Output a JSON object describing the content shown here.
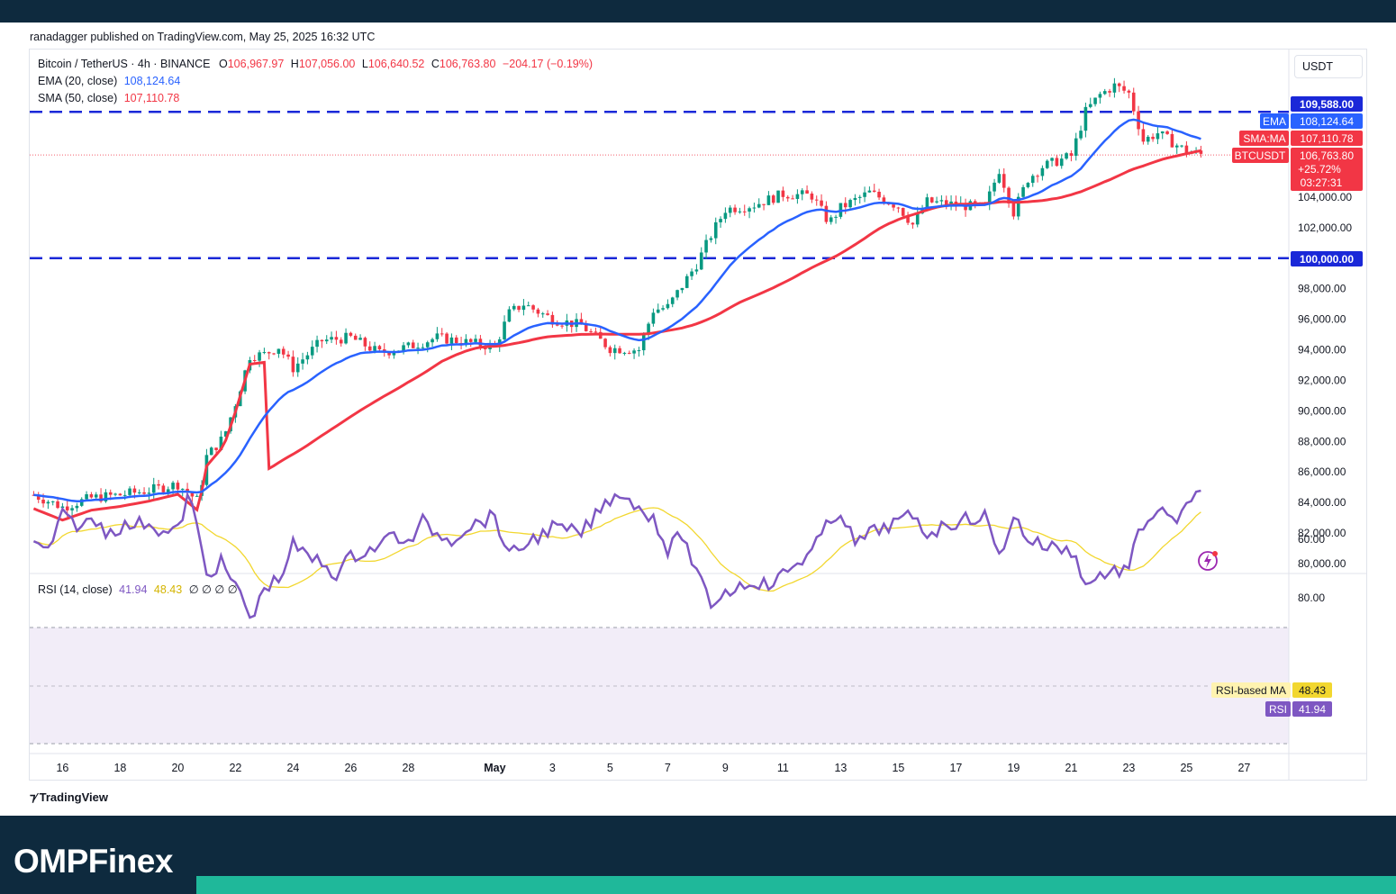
{
  "publisher": "ranadagger published on TradingView.com, May 25, 2025 16:32 UTC",
  "symbol": {
    "title": "Bitcoin / TetherUS · 4h · BINANCE",
    "open_label": "O",
    "open": "106,967.97",
    "high_label": "H",
    "high": "107,056.00",
    "low_label": "L",
    "low": "106,640.52",
    "close_label": "C",
    "close": "106,763.80",
    "change": "−204.17 (−0.19%)"
  },
  "ema": {
    "label": "EMA (20, close)",
    "value": "108,124.64",
    "tag": "EMA",
    "color": "#2962ff"
  },
  "sma": {
    "label": "SMA (50, close)",
    "value": "107,110.78",
    "tag": "SMA:MA",
    "color": "#f23645"
  },
  "currency": "USDT",
  "price_tag": {
    "name": "BTCUSDT",
    "value": "106,763.80",
    "change": "+25.72%",
    "countdown": "03:27:31"
  },
  "resistance_label": "109,588.00",
  "support_label": "100,000.00",
  "rsi": {
    "label": "RSI (14, close)",
    "value": "41.94",
    "ma_value": "48.43",
    "placeholders": "∅ ∅ ∅ ∅",
    "ma_tag": "RSI-based MA",
    "tag": "RSI",
    "line_color": "#7e57c2",
    "ma_color": "#f2d72f"
  },
  "branding": {
    "tradingview": "TradingView",
    "omp": "OMPFinex"
  },
  "chart_data": [
    {
      "type": "candlestick",
      "title": "Bitcoin / TetherUS · 4h · BINANCE",
      "ylim": [
        79500,
        112000
      ],
      "y_ticks": [
        80000,
        82000,
        84000,
        86000,
        88000,
        90000,
        92000,
        94000,
        96000,
        98000,
        102000,
        104000
      ],
      "y_tick_labels": [
        "80,000.00",
        "82,000.00",
        "84,000.00",
        "86,000.00",
        "88,000.00",
        "90,000.00",
        "92,000.00",
        "94,000.00",
        "96,000.00",
        "98,000.00",
        "102,000.00",
        "104,000.00"
      ],
      "x_ticks": [
        "16",
        "18",
        "20",
        "22",
        "24",
        "26",
        "28",
        "May",
        "3",
        "5",
        "7",
        "9",
        "11",
        "13",
        "15",
        "17",
        "19",
        "21",
        "23",
        "25",
        "27"
      ],
      "horizontal_lines": [
        {
          "value": 109588,
          "style": "dashed",
          "color": "#1a28d8"
        },
        {
          "value": 100000,
          "style": "dashed",
          "color": "#1a28d8"
        }
      ],
      "last_price": 106763.8,
      "price_path": [
        [
          "Apr 15",
          84500
        ],
        [
          "Apr 16",
          83700
        ],
        [
          "Apr 17",
          84300
        ],
        [
          "Apr 18",
          84500
        ],
        [
          "Apr 19",
          84800
        ],
        [
          "Apr 20",
          85200
        ],
        [
          "Apr 20.7",
          84100
        ],
        [
          "Apr 21",
          87000
        ],
        [
          "Apr 21.6",
          88300
        ],
        [
          "Apr 22",
          90500
        ],
        [
          "Apr 22.5",
          93600
        ],
        [
          "Apr 23",
          93700
        ],
        [
          "Apr 23.5",
          94200
        ],
        [
          "Apr 24",
          92800
        ],
        [
          "Apr 25",
          94600
        ],
        [
          "Apr 26",
          94800
        ],
        [
          "Apr 27",
          93800
        ],
        [
          "Apr 28",
          94200
        ],
        [
          "Apr 29",
          94800
        ],
        [
          "Apr 30",
          94500
        ],
        [
          "May 1",
          94200
        ],
        [
          "May 1.5",
          96400
        ],
        [
          "May 2",
          97000
        ],
        [
          "May 3",
          96000
        ],
        [
          "May 4",
          95600
        ],
        [
          "May 5",
          94100
        ],
        [
          "May 6",
          94000
        ],
        [
          "May 6.5",
          96600
        ],
        [
          "May 7",
          96800
        ],
        [
          "May 8",
          99600
        ],
        [
          "May 8.5",
          101500
        ],
        [
          "May 9",
          103200
        ],
        [
          "May 10",
          103500
        ],
        [
          "May 11",
          104200
        ],
        [
          "May 12",
          104100
        ],
        [
          "May 12.6",
          102300
        ],
        [
          "May 13",
          103300
        ],
        [
          "May 14",
          104300
        ],
        [
          "May 15",
          103400
        ],
        [
          "May 15.5",
          102200
        ],
        [
          "May 16",
          103700
        ],
        [
          "May 17",
          103500
        ],
        [
          "May 18",
          103300
        ],
        [
          "May 18.5",
          105800
        ],
        [
          "May 19",
          103000
        ],
        [
          "May 19.5",
          105200
        ],
        [
          "May 20",
          106000
        ],
        [
          "May 21",
          106700
        ],
        [
          "May 21.5",
          109600
        ],
        [
          "May 22",
          110700
        ],
        [
          "May 22.5",
          111300
        ],
        [
          "May 23",
          110800
        ],
        [
          "May 23.5",
          107700
        ],
        [
          "May 24",
          108200
        ],
        [
          "May 24.5",
          107600
        ],
        [
          "May 25",
          107000
        ],
        [
          "May 25.6",
          106763.8
        ]
      ],
      "series": [
        {
          "name": "EMA (20, close)",
          "color": "#2962ff",
          "final": 108124.64
        },
        {
          "name": "SMA (50, close)",
          "color": "#f23645",
          "final": 107110.78
        }
      ]
    },
    {
      "type": "line",
      "title": "RSI (14, close)",
      "ylim": [
        40,
        85
      ],
      "y_ticks": [
        60,
        80
      ],
      "y_tick_labels": [
        "60.00",
        "80.00"
      ],
      "band": [
        30,
        70
      ],
      "x_ticks": [
        "16",
        "18",
        "20",
        "22",
        "24",
        "26",
        "28",
        "May",
        "3",
        "5",
        "7",
        "9",
        "11",
        "13",
        "15",
        "17",
        "19",
        "21",
        "23",
        "25",
        "27"
      ],
      "rsi_path": [
        [
          "Apr 15",
          62
        ],
        [
          "Apr 15.5",
          64
        ],
        [
          "Apr 16",
          52
        ],
        [
          "Apr 16.7",
          56
        ],
        [
          "Apr 17",
          53
        ],
        [
          "Apr 17.5",
          57
        ],
        [
          "Apr 18",
          56
        ],
        [
          "Apr 19",
          54
        ],
        [
          "Apr 19.5",
          58
        ],
        [
          "Apr 20",
          57
        ],
        [
          "Apr 20.4",
          44
        ],
        [
          "Apr 21",
          72
        ],
        [
          "Apr 21.5",
          68
        ],
        [
          "Apr 22",
          76
        ],
        [
          "Apr 22.6",
          88
        ],
        [
          "Apr 23",
          76
        ],
        [
          "Apr 23.5",
          74
        ],
        [
          "Apr 24",
          62
        ],
        [
          "Apr 24.5",
          66
        ],
        [
          "Apr 25",
          68
        ],
        [
          "Apr 25.5",
          72
        ],
        [
          "Apr 26",
          66
        ],
        [
          "Apr 27",
          62
        ],
        [
          "Apr 27.5",
          58
        ],
        [
          "Apr 28",
          62
        ],
        [
          "Apr 28.5",
          54
        ],
        [
          "Apr 29",
          58
        ],
        [
          "Apr 29.5",
          60
        ],
        [
          "Apr 30",
          56
        ],
        [
          "May 1",
          52
        ],
        [
          "May 1.5",
          66
        ],
        [
          "May 2",
          62
        ],
        [
          "May 3",
          56
        ],
        [
          "May 4",
          58
        ],
        [
          "May 5",
          46
        ],
        [
          "May 5.5",
          44
        ],
        [
          "May 6",
          50
        ],
        [
          "May 6.5",
          52
        ],
        [
          "May 7",
          64
        ],
        [
          "May 7.5",
          58
        ],
        [
          "May 8",
          72
        ],
        [
          "May 8.5",
          82
        ],
        [
          "May 9",
          78
        ],
        [
          "May 10",
          74
        ],
        [
          "May 10.5",
          76
        ],
        [
          "May 11",
          72
        ],
        [
          "May 12",
          64
        ],
        [
          "May 12.5",
          56
        ],
        [
          "May 13",
          50
        ],
        [
          "May 13.5",
          62
        ],
        [
          "May 14",
          58
        ],
        [
          "May 15",
          54
        ],
        [
          "May 15.5",
          52
        ],
        [
          "May 16",
          58
        ],
        [
          "May 17",
          54
        ],
        [
          "May 18",
          52
        ],
        [
          "May 18.5",
          66
        ],
        [
          "May 19",
          52
        ],
        [
          "May 19.5",
          60
        ],
        [
          "May 20",
          62
        ],
        [
          "May 21",
          64
        ],
        [
          "May 21.6",
          76
        ],
        [
          "May 22",
          72
        ],
        [
          "May 23",
          70
        ],
        [
          "May 23.4",
          56
        ],
        [
          "May 24",
          50
        ],
        [
          "May 24.5",
          54
        ],
        [
          "May 25",
          50
        ],
        [
          "May 25.6",
          41.94
        ]
      ],
      "series": [
        {
          "name": "RSI",
          "color": "#7e57c2",
          "final": 41.94
        },
        {
          "name": "RSI-based MA",
          "color": "#f2d72f",
          "final": 48.43
        }
      ]
    }
  ]
}
